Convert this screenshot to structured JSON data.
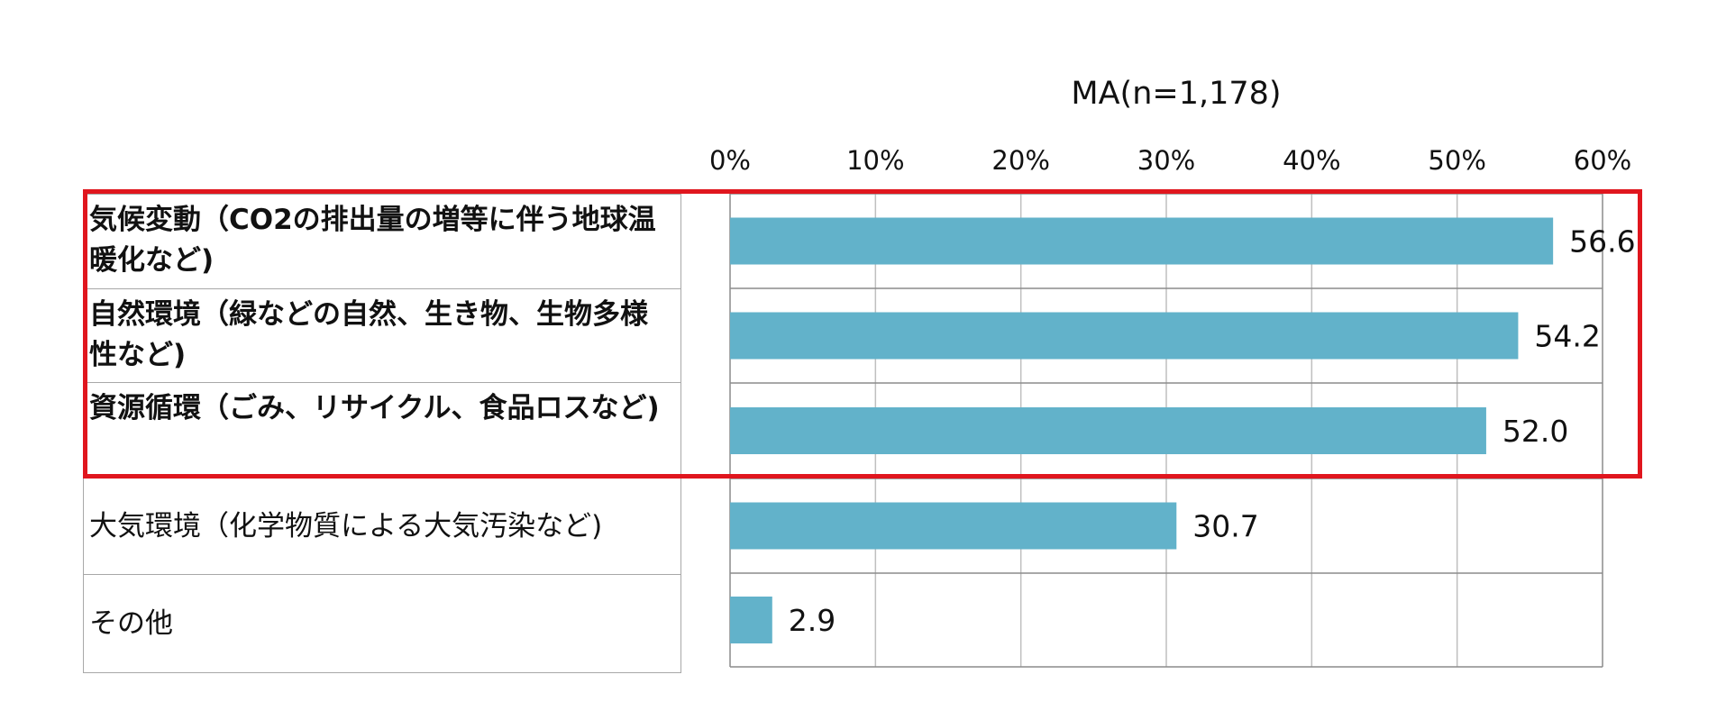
{
  "chart_data": {
    "type": "bar",
    "orientation": "horizontal",
    "subtitle": "MA(n=1,178)",
    "categories": [
      "気候変動（CO2の排出量の増等に伴う地球温暖化など)",
      "自然環境（緑などの自然、生き物、生物多様性など)",
      "資源循環（ごみ、リサイクル、食品ロスなど)",
      "大気環境（化学物質による大気汚染など)",
      "その他"
    ],
    "values": [
      56.6,
      54.2,
      52.0,
      30.7,
      2.9
    ],
    "value_labels": [
      "56.6",
      "54.2",
      "52.0",
      "30.7",
      "2.9"
    ],
    "highlighted": [
      true,
      true,
      true,
      false,
      false
    ],
    "xlim": [
      0,
      60
    ],
    "ticks": [
      0,
      10,
      20,
      30,
      40,
      50,
      60
    ],
    "tick_labels": [
      "0%",
      "10%",
      "20%",
      "30%",
      "40%",
      "50%",
      "60%"
    ],
    "grid": true,
    "xlabel": "",
    "ylabel": "",
    "colors": {
      "bar": "#62b2ca",
      "grid": "#bfbfbf",
      "axis": "#8c8c8c",
      "highlight_border": "#e0161e"
    }
  }
}
